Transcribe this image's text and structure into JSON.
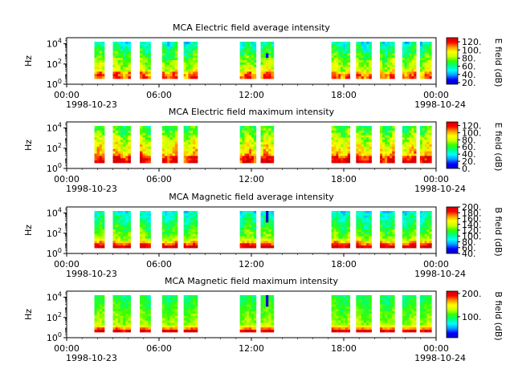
{
  "chart_data": [
    {
      "type": "heatmap",
      "title": "MCA  Electric field average intensity",
      "ylabel": "Hz",
      "yticks": [
        "10^0",
        "10^2",
        "10^4"
      ],
      "colorbar_label": "E field (dB)",
      "colorbar_ticks": [
        "20.",
        "40.",
        "60.",
        "80.",
        "100.",
        "120."
      ],
      "colorbar_range": [
        16,
        130
      ],
      "xticks": [
        "00:00",
        "06:00",
        "12:00",
        "18:00",
        "00:00"
      ],
      "xdates": [
        "1998-10-23",
        "1998-10-24"
      ]
    },
    {
      "type": "heatmap",
      "title": "MCA  Electric field maximum intensity",
      "ylabel": "Hz",
      "yticks": [
        "10^0",
        "10^2",
        "10^4"
      ],
      "colorbar_label": "E field (dB)",
      "colorbar_ticks": [
        "0.",
        "20.",
        "40.",
        "60.",
        "80.",
        "100.",
        "120."
      ],
      "colorbar_range": [
        0,
        130
      ],
      "xticks": [
        "00:00",
        "06:00",
        "12:00",
        "18:00",
        "00:00"
      ],
      "xdates": [
        "1998-10-23",
        "1998-10-24"
      ]
    },
    {
      "type": "heatmap",
      "title": "MCA  Magnetic field average intensity",
      "ylabel": "Hz",
      "yticks": [
        "10^0",
        "10^2",
        "10^4"
      ],
      "colorbar_label": "B field (dB)",
      "colorbar_ticks": [
        "40.",
        "60.",
        "80.",
        "100.",
        "120.",
        "140.",
        "160.",
        "180.",
        "200."
      ],
      "colorbar_range": [
        40,
        200
      ],
      "xticks": [
        "00:00",
        "06:00",
        "12:00",
        "18:00",
        "00:00"
      ],
      "xdates": [
        "1998-10-23",
        "1998-10-24"
      ]
    },
    {
      "type": "heatmap",
      "title": "MCA  Magnetic field maximum intensity",
      "ylabel": "Hz",
      "yticks": [
        "10^0",
        "10^2",
        "10^4"
      ],
      "colorbar_label": "B field (dB)",
      "colorbar_ticks": [
        "100.",
        "200."
      ],
      "colorbar_range": [
        10,
        210
      ],
      "xticks": [
        "00:00",
        "06:00",
        "12:00",
        "18:00",
        "00:00"
      ],
      "xdates": [
        "1998-10-23",
        "1998-10-24"
      ]
    }
  ],
  "data_segments_hours": [
    [
      1.8,
      2.45
    ],
    [
      3.0,
      4.15
    ],
    [
      4.75,
      5.45
    ],
    [
      6.2,
      7.2
    ],
    [
      7.6,
      8.5
    ],
    [
      11.25,
      12.3
    ],
    [
      12.6,
      13.45
    ],
    [
      17.2,
      18.4
    ],
    [
      18.8,
      19.8
    ],
    [
      20.35,
      21.3
    ],
    [
      21.8,
      22.7
    ],
    [
      22.95,
      23.7
    ]
  ],
  "colors": {
    "jet": [
      "#0000c8",
      "#0000ff",
      "#00a0ff",
      "#00ffff",
      "#00ff80",
      "#33ff00",
      "#ccff00",
      "#ffff00",
      "#ff9900",
      "#ff0000",
      "#cc0000"
    ]
  }
}
